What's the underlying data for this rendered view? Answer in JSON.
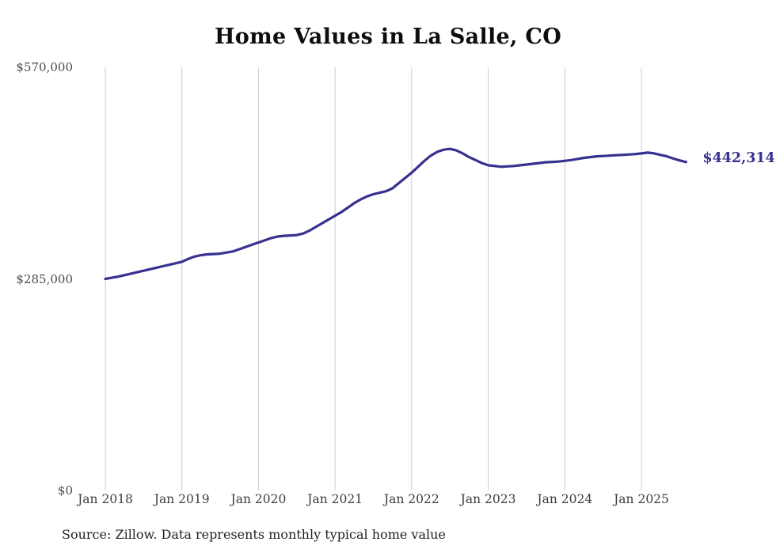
{
  "title": "Home Values in La Salle, CO",
  "source_note": "Source: Zillow. Data represents monthly typical home value",
  "end_label": "$442,314",
  "colors": {
    "line": "#37318f",
    "grid": "#cccccc",
    "title_text": "#0e0e0e",
    "axis_text": "#454545",
    "source_text": "#222222",
    "background": "#ffffff"
  },
  "chart_data": {
    "type": "line",
    "title": "Home Values in La Salle, CO",
    "xlabel": "",
    "ylabel": "",
    "ylim": [
      0,
      570000
    ],
    "grid": "vertical-only",
    "legend": "none",
    "x_ticks": [
      "Jan 2018",
      "Jan 2019",
      "Jan 2020",
      "Jan 2021",
      "Jan 2022",
      "Jan 2023",
      "Jan 2024",
      "Jan 2025"
    ],
    "y_ticks": [
      {
        "label": "$570,000",
        "value": 570000
      },
      {
        "label": "$285,000",
        "value": 285000
      },
      {
        "label": "$0",
        "value": 0
      }
    ],
    "x_start": "Jan 2018",
    "x_end": "Aug 2025",
    "x_frequency": "monthly",
    "end_value": 442314,
    "end_value_label": "$442,314",
    "series": [
      {
        "name": "Typical home value",
        "values": [
          285000,
          286500,
          288000,
          290000,
          292000,
          294000,
          296000,
          298000,
          300000,
          302000,
          304000,
          306000,
          308000,
          312000,
          315000,
          317000,
          318000,
          318500,
          319000,
          320500,
          322000,
          325000,
          328000,
          331000,
          334000,
          337000,
          340000,
          342000,
          343000,
          343500,
          344000,
          346000,
          350000,
          355000,
          360000,
          365000,
          370000,
          375000,
          381000,
          387000,
          392000,
          396000,
          399000,
          401000,
          403000,
          407000,
          414000,
          421000,
          428000,
          436000,
          444000,
          451000,
          456000,
          459000,
          460000,
          458000,
          454000,
          449000,
          445000,
          441000,
          438000,
          437000,
          436000,
          436500,
          437000,
          438000,
          439000,
          440000,
          441000,
          442000,
          442500,
          443000,
          444000,
          445000,
          446500,
          448000,
          449000,
          450000,
          450500,
          451000,
          451500,
          452000,
          452500,
          453000,
          454000,
          455000,
          454000,
          452000,
          450000,
          447000,
          444500,
          442314
        ]
      }
    ]
  }
}
